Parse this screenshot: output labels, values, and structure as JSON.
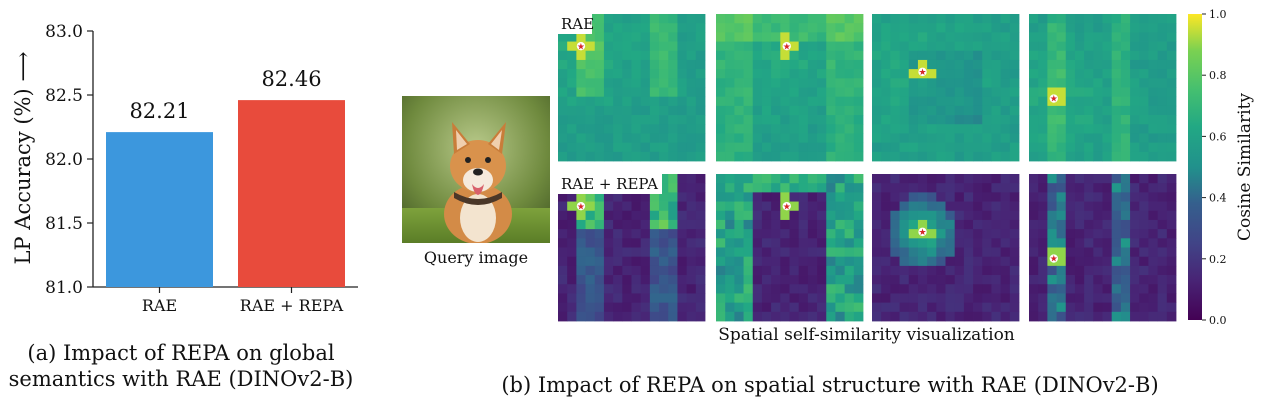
{
  "chart_data": [
    {
      "type": "bar",
      "categories": [
        "RAE",
        "RAE + REPA"
      ],
      "values": [
        82.21,
        82.46
      ],
      "value_labels": [
        "82.21",
        "82.46"
      ],
      "colors": [
        "#3c97dd",
        "#e84b3c"
      ],
      "ylabel": "LP Accuracy (%) ⟶",
      "ylim": [
        81.0,
        83.0
      ],
      "yticks": [
        "81.0",
        "81.5",
        "82.0",
        "82.5",
        "83.0"
      ],
      "caption_line1": "(a) Impact of REPA on global",
      "caption_line2": "semantics with RAE (DINOv2-B)"
    },
    {
      "type": "heatmap",
      "query_label": "Query image",
      "row_labels": [
        "RAE",
        "RAE + REPA"
      ],
      "xlabel": "Spatial self-similarity visualization",
      "colorbar": {
        "label": "Cosine Similarity",
        "range": [
          0.0,
          1.0
        ],
        "ticks": [
          "0.0",
          "0.2",
          "0.4",
          "0.6",
          "0.8",
          "1.0"
        ],
        "colormap": "viridis"
      },
      "caption": "(b) Impact of REPA on spatial structure with RAE (DINOv2-B)"
    }
  ]
}
